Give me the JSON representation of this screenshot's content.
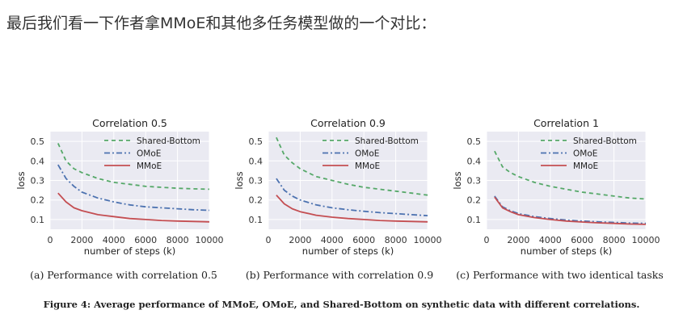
{
  "intro_text": "最后我们看一下作者拿MMoE和其他多任务模型做的一个对比：",
  "figure_caption": "Figure 4: Average performance of MMoE, OMoE, and Shared-Bottom on synthetic data with different correlations.",
  "colors": {
    "Shared-Bottom": "#55a868",
    "OMoE": "#4c72b0",
    "MMoE": "#c44e52",
    "plot_bg": "#eaeaf2",
    "grid": "#ffffff"
  },
  "chart_data": [
    {
      "type": "line",
      "title": "Correlation 0.5",
      "caption": "(a) Performance with correlation 0.5",
      "xlabel": "number of steps (k)",
      "ylabel": "loss",
      "xlim": [
        0,
        10000
      ],
      "ylim": [
        0.05,
        0.55
      ],
      "xticks": [
        0,
        2000,
        4000,
        6000,
        8000,
        10000
      ],
      "yticks": [
        0.1,
        0.2,
        0.3,
        0.4,
        0.5
      ],
      "legend_position": "top-right",
      "grid": true,
      "x": [
        500,
        1000,
        1500,
        2000,
        3000,
        4000,
        5000,
        6000,
        7000,
        8000,
        9000,
        10000
      ],
      "series": [
        {
          "name": "Shared-Bottom",
          "style": "dashed",
          "values": [
            0.49,
            0.4,
            0.36,
            0.34,
            0.31,
            0.29,
            0.28,
            0.27,
            0.265,
            0.26,
            0.257,
            0.255
          ]
        },
        {
          "name": "OMoE",
          "style": "dashdot",
          "values": [
            0.38,
            0.31,
            0.27,
            0.24,
            0.21,
            0.19,
            0.175,
            0.165,
            0.16,
            0.155,
            0.15,
            0.147
          ]
        },
        {
          "name": "MMoE",
          "style": "solid",
          "values": [
            0.235,
            0.19,
            0.16,
            0.145,
            0.125,
            0.115,
            0.105,
            0.1,
            0.095,
            0.092,
            0.09,
            0.088
          ]
        }
      ]
    },
    {
      "type": "line",
      "title": "Correlation 0.9",
      "caption": "(b) Performance with correlation 0.9",
      "xlabel": "number of steps (k)",
      "ylabel": "loss",
      "xlim": [
        0,
        10000
      ],
      "ylim": [
        0.05,
        0.55
      ],
      "xticks": [
        0,
        2000,
        4000,
        6000,
        8000,
        10000
      ],
      "yticks": [
        0.1,
        0.2,
        0.3,
        0.4,
        0.5
      ],
      "legend_position": "top-right",
      "grid": true,
      "x": [
        500,
        1000,
        1500,
        2000,
        3000,
        4000,
        5000,
        6000,
        7000,
        8000,
        9000,
        10000
      ],
      "series": [
        {
          "name": "Shared-Bottom",
          "style": "dashed",
          "values": [
            0.52,
            0.43,
            0.39,
            0.36,
            0.32,
            0.3,
            0.28,
            0.265,
            0.255,
            0.245,
            0.235,
            0.225
          ]
        },
        {
          "name": "OMoE",
          "style": "dashdot",
          "values": [
            0.31,
            0.25,
            0.22,
            0.2,
            0.175,
            0.16,
            0.15,
            0.142,
            0.135,
            0.13,
            0.125,
            0.12
          ]
        },
        {
          "name": "MMoE",
          "style": "solid",
          "values": [
            0.225,
            0.18,
            0.155,
            0.14,
            0.122,
            0.112,
            0.105,
            0.1,
            0.095,
            0.092,
            0.09,
            0.088
          ]
        }
      ]
    },
    {
      "type": "line",
      "title": "Correlation 1",
      "caption": "(c) Performance with two identical tasks",
      "xlabel": "number of steps (k)",
      "ylabel": "loss",
      "xlim": [
        0,
        10000
      ],
      "ylim": [
        0.05,
        0.55
      ],
      "xticks": [
        0,
        2000,
        4000,
        6000,
        8000,
        10000
      ],
      "yticks": [
        0.1,
        0.2,
        0.3,
        0.4,
        0.5
      ],
      "legend_position": "top-right",
      "grid": true,
      "x": [
        500,
        1000,
        1500,
        2000,
        3000,
        4000,
        5000,
        6000,
        7000,
        8000,
        9000,
        10000
      ],
      "series": [
        {
          "name": "Shared-Bottom",
          "style": "dashed",
          "values": [
            0.45,
            0.37,
            0.34,
            0.32,
            0.29,
            0.27,
            0.255,
            0.24,
            0.23,
            0.22,
            0.21,
            0.205
          ]
        },
        {
          "name": "OMoE",
          "style": "dashdot",
          "values": [
            0.22,
            0.165,
            0.145,
            0.13,
            0.115,
            0.105,
            0.097,
            0.092,
            0.088,
            0.085,
            0.082,
            0.08
          ]
        },
        {
          "name": "MMoE",
          "style": "solid",
          "values": [
            0.215,
            0.16,
            0.14,
            0.125,
            0.11,
            0.1,
            0.092,
            0.087,
            0.083,
            0.08,
            0.077,
            0.075
          ]
        }
      ]
    }
  ]
}
